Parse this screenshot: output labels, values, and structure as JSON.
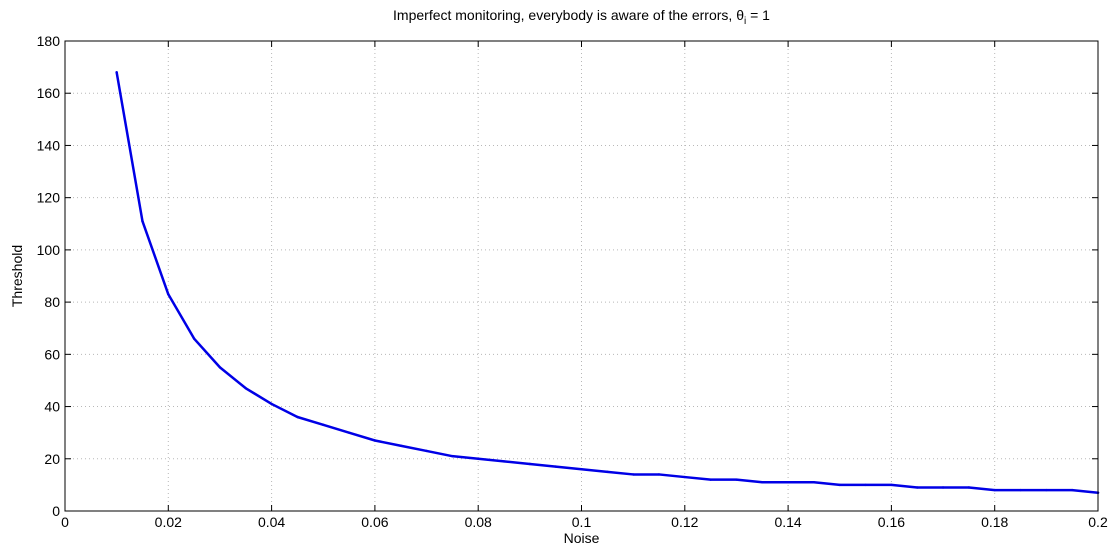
{
  "chart_data": {
    "type": "line",
    "title": "Imperfect monitoring, everybody is aware of the errors, ",
    "title_symbol": "θ",
    "title_subscript": "i",
    "title_suffix": " = 1",
    "xlabel": "Noise",
    "ylabel": "Threshold",
    "xlim": [
      0,
      0.2
    ],
    "ylim": [
      0,
      180
    ],
    "x_ticks": [
      0,
      0.02,
      0.04,
      0.06,
      0.08,
      0.1,
      0.12,
      0.14,
      0.16,
      0.18,
      0.2
    ],
    "x_tick_labels": [
      "0",
      "0.02",
      "0.04",
      "0.06",
      "0.08",
      "0.1",
      "0.12",
      "0.14",
      "0.16",
      "0.18",
      "0.2"
    ],
    "y_ticks": [
      0,
      20,
      40,
      60,
      80,
      100,
      120,
      140,
      160,
      180
    ],
    "y_tick_labels": [
      "0",
      "20",
      "40",
      "60",
      "80",
      "100",
      "120",
      "140",
      "160",
      "180"
    ],
    "grid": true,
    "line_color": "#0000e6",
    "series": [
      {
        "x": [
          0.01,
          0.015,
          0.02,
          0.025,
          0.03,
          0.035,
          0.04,
          0.045,
          0.05,
          0.055,
          0.06,
          0.065,
          0.07,
          0.075,
          0.08,
          0.085,
          0.09,
          0.095,
          0.1,
          0.105,
          0.11,
          0.115,
          0.12,
          0.125,
          0.13,
          0.135,
          0.14,
          0.145,
          0.15,
          0.155,
          0.16,
          0.165,
          0.17,
          0.175,
          0.18,
          0.185,
          0.19,
          0.195,
          0.2
        ],
        "values": [
          168,
          111,
          83,
          66,
          55,
          47,
          41,
          36,
          33,
          30,
          27,
          25,
          23,
          21,
          20,
          19,
          18,
          17,
          16,
          15,
          14,
          14,
          13,
          12,
          12,
          11,
          11,
          11,
          10,
          10,
          10,
          9,
          9,
          9,
          8,
          8,
          8,
          8,
          7
        ]
      }
    ]
  }
}
